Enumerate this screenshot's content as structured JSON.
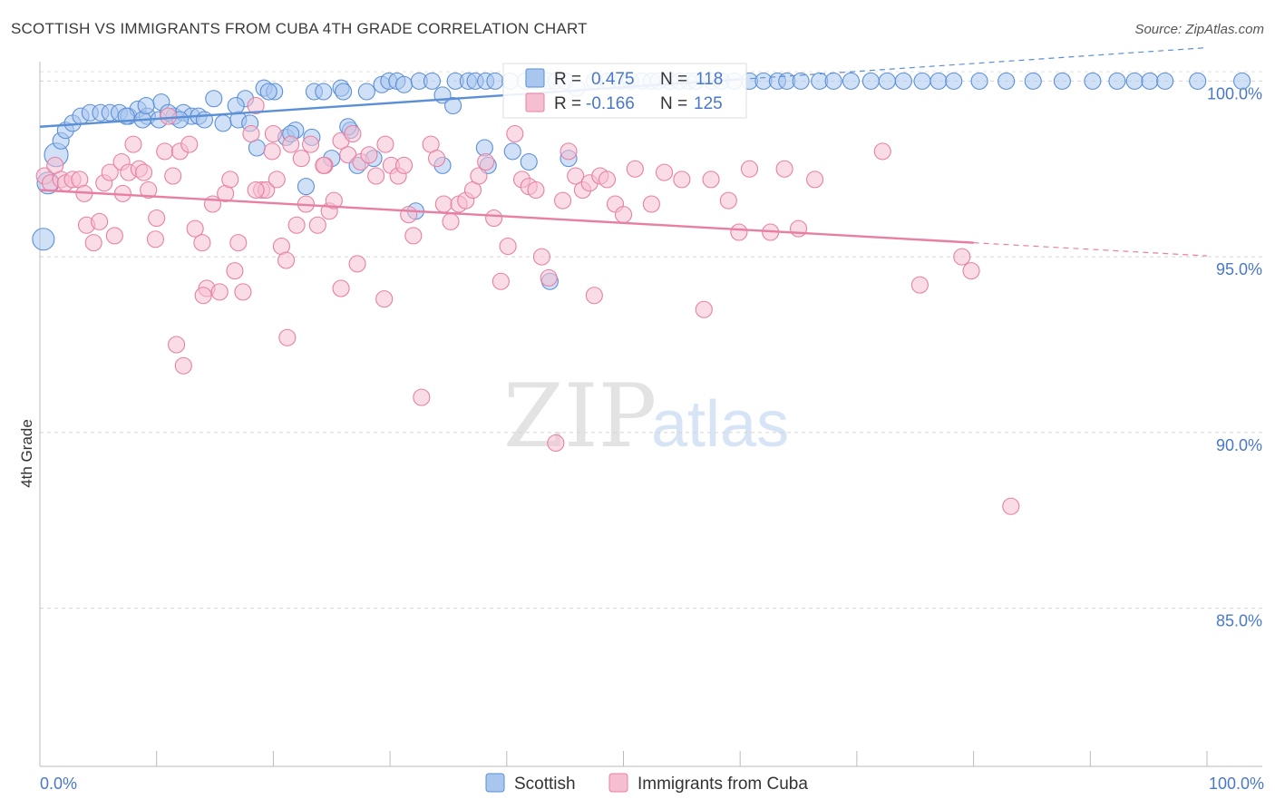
{
  "header": {
    "title": "SCOTTISH VS IMMIGRANTS FROM CUBA 4TH GRADE CORRELATION CHART",
    "source": "Source: ZipAtlas.com"
  },
  "colors": {
    "scottish": "#5b8fd6",
    "scottish_fill": "#a9c6ee",
    "cuba": "#e87fa3",
    "cuba_fill": "#f6bfd1",
    "tick_text": "#4a78c8",
    "grid": "#d8d8d8"
  },
  "watermark": {
    "zip": "ZIP",
    "atlas": "atlas"
  },
  "legend_box": {
    "rows": [
      {
        "r_label": "R =",
        "r_value": "0.475",
        "n_label": "N =",
        "n_value": "118"
      },
      {
        "r_label": "R =",
        "r_value": "-0.166",
        "n_label": "N =",
        "n_value": "125"
      }
    ]
  },
  "bottom_legend": [
    "Scottish",
    "Immigrants from Cuba"
  ],
  "chart_data": {
    "type": "scatter",
    "title": "SCOTTISH VS IMMIGRANTS FROM CUBA 4TH GRADE CORRELATION CHART",
    "xlabel": "",
    "ylabel": "4th Grade",
    "xlim": [
      0,
      100
    ],
    "ylim": [
      80.5,
      100.5
    ],
    "x_tick_labels": [
      "0.0%",
      "100.0%"
    ],
    "y_ticks": [
      85,
      90,
      95,
      100
    ],
    "y_tick_labels": [
      "85.0%",
      "90.0%",
      "95.0%",
      "100.0%"
    ],
    "grid": true,
    "legend_position": "top-center",
    "series": [
      {
        "name": "Scottish",
        "r": 0.475,
        "n": 118,
        "trend": {
          "x0": 0,
          "y0": 98.7,
          "x1": 60,
          "y1": 100.05,
          "dashed_after": 60
        },
        "points": [
          [
            0.3,
            95.5
          ],
          [
            0.7,
            97.1
          ],
          [
            1.4,
            97.9
          ],
          [
            1.8,
            98.3
          ],
          [
            2.2,
            98.6
          ],
          [
            2.8,
            98.8
          ],
          [
            3.5,
            99.0
          ],
          [
            4.3,
            99.1
          ],
          [
            5.2,
            99.1
          ],
          [
            6,
            99.1
          ],
          [
            6.8,
            99.1
          ],
          [
            7.6,
            99.0
          ],
          [
            8.4,
            99.2
          ],
          [
            9.2,
            99.0
          ],
          [
            10.4,
            99.4
          ],
          [
            8.8,
            98.9
          ],
          [
            10.2,
            98.9
          ],
          [
            11.5,
            99.0
          ],
          [
            12.3,
            99.1
          ],
          [
            11.0,
            99.1
          ],
          [
            13.0,
            99.0
          ],
          [
            13.6,
            99.0
          ],
          [
            14.9,
            99.5
          ],
          [
            15.7,
            98.8
          ],
          [
            17.0,
            98.9
          ],
          [
            17.6,
            99.5
          ],
          [
            18.6,
            98.1
          ],
          [
            19.2,
            99.8
          ],
          [
            20.1,
            99.7
          ],
          [
            21.1,
            98.4
          ],
          [
            21.9,
            98.6
          ],
          [
            22.8,
            97.0
          ],
          [
            23.5,
            99.7
          ],
          [
            24.3,
            99.7
          ],
          [
            25.0,
            97.8
          ],
          [
            25.8,
            99.8
          ],
          [
            26.6,
            98.6
          ],
          [
            26.0,
            99.7
          ],
          [
            28.0,
            99.7
          ],
          [
            21.5,
            98.5
          ],
          [
            29.3,
            99.9
          ],
          [
            29.9,
            100.0
          ],
          [
            30.6,
            100.0
          ],
          [
            31.2,
            99.9
          ],
          [
            32.5,
            100.0
          ],
          [
            33.6,
            100.0
          ],
          [
            34.5,
            99.6
          ],
          [
            35.6,
            100.0
          ],
          [
            36.7,
            100.0
          ],
          [
            37.3,
            100.0
          ],
          [
            38.2,
            100.0
          ],
          [
            39.0,
            100.0
          ],
          [
            40.3,
            100.0
          ],
          [
            41.6,
            100.0
          ],
          [
            42.3,
            100.0
          ],
          [
            43.6,
            100.0
          ],
          [
            44.2,
            100.0
          ],
          [
            45.0,
            100.0
          ],
          [
            46.0,
            99.8
          ],
          [
            47.5,
            100.0
          ],
          [
            48.7,
            100.0
          ],
          [
            49.8,
            100.0
          ],
          [
            50.6,
            100.0
          ],
          [
            51.6,
            100.0
          ],
          [
            52.4,
            100.0
          ],
          [
            53.0,
            100.0
          ],
          [
            54.0,
            100.0
          ],
          [
            54.8,
            100.0
          ],
          [
            55.6,
            100.0
          ],
          [
            56.2,
            100.0
          ],
          [
            57.6,
            100.0
          ],
          [
            58.4,
            100.0
          ],
          [
            59.5,
            100.0
          ],
          [
            60.8,
            100.0
          ],
          [
            62.0,
            100.0
          ],
          [
            63.2,
            100.0
          ],
          [
            64.0,
            100.0
          ],
          [
            65.2,
            100.0
          ],
          [
            66.8,
            100.0
          ],
          [
            68.0,
            100.0
          ],
          [
            69.5,
            100.0
          ],
          [
            71.2,
            100.0
          ],
          [
            72.6,
            100.0
          ],
          [
            74.0,
            100.0
          ],
          [
            75.6,
            100.0
          ],
          [
            77.0,
            100.0
          ],
          [
            78.3,
            100.0
          ],
          [
            80.5,
            100.0
          ],
          [
            82.8,
            100.0
          ],
          [
            85.1,
            100.0
          ],
          [
            87.6,
            100.0
          ],
          [
            90.2,
            100.0
          ],
          [
            92.3,
            100.0
          ],
          [
            93.8,
            100.0
          ],
          [
            95.1,
            100.0
          ],
          [
            96.4,
            100.0
          ],
          [
            99.2,
            100.0
          ],
          [
            103,
            100.0
          ],
          [
            38.1,
            98.1
          ],
          [
            34.5,
            97.6
          ],
          [
            28.6,
            97.8
          ],
          [
            38.4,
            97.6
          ],
          [
            40.5,
            98.0
          ],
          [
            41.9,
            97.7
          ],
          [
            45.3,
            97.8
          ],
          [
            32.2,
            96.3
          ],
          [
            35.4,
            99.3
          ],
          [
            43.7,
            94.3
          ],
          [
            23.3,
            98.4
          ],
          [
            19.6,
            99.7
          ],
          [
            16.8,
            99.3
          ],
          [
            14.1,
            98.9
          ],
          [
            12.0,
            98.9
          ],
          [
            9.1,
            99.3
          ],
          [
            7.4,
            99.0
          ],
          [
            18.0,
            98.8
          ],
          [
            26.4,
            98.7
          ],
          [
            27.2,
            97.6
          ]
        ]
      },
      {
        "name": "Immigrants from Cuba",
        "r": -0.166,
        "n": 125,
        "trend": {
          "x0": 0,
          "y0": 96.9,
          "x1": 80,
          "y1": 95.4,
          "dashed_after": 80
        },
        "points": [
          [
            0.4,
            97.3
          ],
          [
            0.9,
            97.1
          ],
          [
            1.3,
            97.6
          ],
          [
            1.8,
            97.2
          ],
          [
            2.2,
            97.1
          ],
          [
            2.8,
            97.2
          ],
          [
            3.4,
            97.2
          ],
          [
            3.8,
            96.8
          ],
          [
            4.0,
            95.9
          ],
          [
            4.6,
            95.4
          ],
          [
            5.1,
            96.0
          ],
          [
            5.5,
            97.1
          ],
          [
            6.0,
            97.4
          ],
          [
            6.4,
            95.6
          ],
          [
            7.0,
            97.7
          ],
          [
            7.6,
            97.4
          ],
          [
            8.0,
            98.2
          ],
          [
            8.5,
            97.5
          ],
          [
            8.9,
            97.4
          ],
          [
            9.3,
            96.9
          ],
          [
            10.0,
            96.1
          ],
          [
            10.7,
            98.0
          ],
          [
            11.0,
            99.0
          ],
          [
            11.4,
            97.3
          ],
          [
            12.0,
            98.0
          ],
          [
            12.8,
            98.2
          ],
          [
            13.3,
            95.8
          ],
          [
            13.9,
            95.4
          ],
          [
            14.3,
            94.1
          ],
          [
            14.8,
            96.5
          ],
          [
            15.4,
            94.0
          ],
          [
            15.9,
            96.8
          ],
          [
            16.3,
            97.2
          ],
          [
            16.7,
            94.6
          ],
          [
            17.0,
            95.4
          ],
          [
            17.4,
            94.0
          ],
          [
            18.1,
            98.5
          ],
          [
            18.5,
            99.3
          ],
          [
            19.0,
            96.9
          ],
          [
            19.4,
            96.9
          ],
          [
            19.9,
            98.0
          ],
          [
            20.3,
            97.2
          ],
          [
            20.7,
            95.3
          ],
          [
            21.1,
            94.9
          ],
          [
            21.5,
            98.2
          ],
          [
            22.0,
            95.9
          ],
          [
            22.4,
            97.8
          ],
          [
            22.8,
            96.5
          ],
          [
            23.2,
            98.2
          ],
          [
            23.8,
            95.9
          ],
          [
            24.4,
            97.6
          ],
          [
            24.8,
            96.3
          ],
          [
            25.2,
            96.6
          ],
          [
            25.8,
            98.3
          ],
          [
            26.4,
            97.9
          ],
          [
            26.8,
            98.5
          ],
          [
            27.2,
            94.8
          ],
          [
            27.5,
            97.7
          ],
          [
            28.2,
            97.9
          ],
          [
            28.8,
            97.3
          ],
          [
            29.5,
            93.8
          ],
          [
            30.1,
            97.6
          ],
          [
            30.7,
            97.3
          ],
          [
            31.2,
            97.6
          ],
          [
            31.6,
            96.2
          ],
          [
            32.0,
            95.6
          ],
          [
            32.7,
            91.0
          ],
          [
            33.5,
            98.2
          ],
          [
            34.0,
            97.8
          ],
          [
            34.6,
            96.5
          ],
          [
            35.2,
            96.0
          ],
          [
            35.9,
            96.5
          ],
          [
            36.5,
            96.6
          ],
          [
            37.1,
            96.9
          ],
          [
            37.6,
            97.3
          ],
          [
            38.2,
            97.7
          ],
          [
            38.9,
            96.1
          ],
          [
            39.5,
            94.3
          ],
          [
            40.1,
            95.3
          ],
          [
            40.7,
            98.5
          ],
          [
            41.3,
            97.2
          ],
          [
            41.9,
            97.0
          ],
          [
            42.5,
            96.9
          ],
          [
            43.0,
            95.0
          ],
          [
            43.6,
            94.4
          ],
          [
            44.2,
            89.7
          ],
          [
            44.8,
            96.6
          ],
          [
            45.3,
            98.0
          ],
          [
            45.9,
            97.3
          ],
          [
            46.5,
            96.9
          ],
          [
            47.1,
            97.1
          ],
          [
            47.5,
            93.9
          ],
          [
            48.0,
            97.3
          ],
          [
            48.6,
            97.2
          ],
          [
            49.3,
            96.5
          ],
          [
            50.0,
            96.2
          ],
          [
            51.0,
            97.5
          ],
          [
            52.4,
            96.5
          ],
          [
            53.5,
            97.4
          ],
          [
            55.0,
            97.2
          ],
          [
            56.9,
            93.5
          ],
          [
            57.5,
            97.2
          ],
          [
            59.0,
            96.6
          ],
          [
            59.9,
            95.7
          ],
          [
            60.8,
            97.5
          ],
          [
            62.6,
            95.7
          ],
          [
            63.8,
            97.5
          ],
          [
            65.0,
            95.8
          ],
          [
            66.4,
            97.2
          ],
          [
            72.2,
            98.0
          ],
          [
            75.4,
            94.2
          ],
          [
            79.0,
            95.0
          ],
          [
            79.8,
            94.6
          ],
          [
            83.2,
            87.9
          ],
          [
            9.9,
            95.5
          ],
          [
            11.7,
            92.5
          ],
          [
            12.3,
            91.9
          ],
          [
            14.0,
            93.9
          ],
          [
            18.5,
            96.9
          ],
          [
            21.2,
            92.7
          ],
          [
            25.8,
            94.1
          ],
          [
            29.6,
            98.2
          ],
          [
            24.3,
            97.6
          ],
          [
            20.0,
            98.5
          ],
          [
            7.1,
            96.8
          ]
        ]
      }
    ]
  }
}
